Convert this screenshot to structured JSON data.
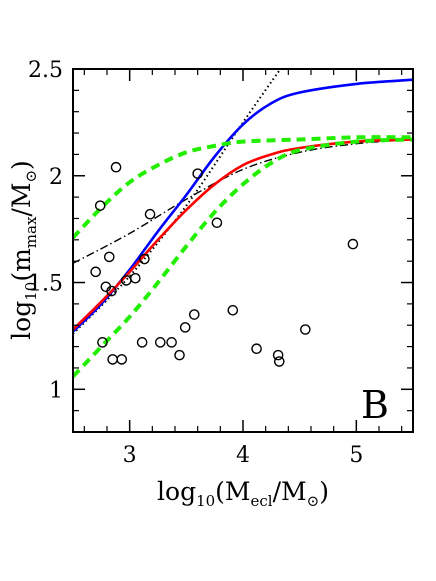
{
  "chart_data": {
    "type": "scatter",
    "panel_label": "B",
    "xlabel": {
      "pre": "log",
      "pre_sub": "10",
      "mid": "(M",
      "sub": "ecl",
      "post": "/M",
      "sun": "⊙",
      "end": ")"
    },
    "ylabel": {
      "pre": "log",
      "pre_sub": "10",
      "mid": "(m",
      "sub": "max",
      "post": "/M",
      "sun": "⊙",
      "end": ")"
    },
    "xlim": [
      2.5,
      5.5
    ],
    "ylim": [
      0.8,
      2.5
    ],
    "x_ticks": [
      3,
      4,
      5
    ],
    "x_tick_labels": [
      "3",
      "4",
      "5"
    ],
    "y_ticks": [
      1,
      1.5,
      2,
      2.5
    ],
    "y_tick_labels": [
      "1",
      "1.5",
      "2",
      "2.5"
    ],
    "grid": false,
    "points": [
      [
        2.7,
        1.55
      ],
      [
        2.74,
        1.86
      ],
      [
        2.76,
        1.22
      ],
      [
        2.79,
        1.48
      ],
      [
        2.82,
        1.62
      ],
      [
        2.84,
        1.46
      ],
      [
        2.85,
        1.14
      ],
      [
        2.88,
        2.04
      ],
      [
        2.93,
        1.14
      ],
      [
        2.97,
        1.51
      ],
      [
        3.05,
        1.52
      ],
      [
        3.11,
        1.22
      ],
      [
        3.13,
        1.61
      ],
      [
        3.18,
        1.82
      ],
      [
        3.27,
        1.22
      ],
      [
        3.37,
        1.22
      ],
      [
        3.44,
        1.16
      ],
      [
        3.49,
        1.29
      ],
      [
        3.57,
        1.35
      ],
      [
        3.6,
        2.01
      ],
      [
        3.77,
        1.78
      ],
      [
        3.91,
        1.37
      ],
      [
        4.12,
        1.19
      ],
      [
        4.31,
        1.16
      ],
      [
        4.32,
        1.13
      ],
      [
        4.55,
        1.28
      ],
      [
        4.97,
        1.68
      ]
    ],
    "series": [
      {
        "style": "dotted",
        "color": "#000000",
        "points": [
          [
            2.5,
            1.26
          ],
          [
            3.0,
            1.53
          ],
          [
            3.5,
            1.86
          ],
          [
            4.0,
            2.25
          ],
          [
            4.37,
            2.53
          ]
        ]
      },
      {
        "style": "dashdot",
        "color": "#000000",
        "points": [
          [
            2.5,
            1.59
          ],
          [
            3.0,
            1.73
          ],
          [
            3.5,
            1.89
          ],
          [
            4.0,
            2.03
          ],
          [
            4.5,
            2.11
          ],
          [
            5.0,
            2.15
          ],
          [
            5.5,
            2.17
          ]
        ]
      },
      {
        "style": "solid",
        "color": "#0000ff",
        "points": [
          [
            2.5,
            1.27
          ],
          [
            2.75,
            1.4
          ],
          [
            3.0,
            1.56
          ],
          [
            3.25,
            1.74
          ],
          [
            3.5,
            1.91
          ],
          [
            3.75,
            2.09
          ],
          [
            4.0,
            2.24
          ],
          [
            4.25,
            2.34
          ],
          [
            4.5,
            2.39
          ],
          [
            5.0,
            2.43
          ],
          [
            5.5,
            2.45
          ]
        ]
      },
      {
        "style": "solid",
        "color": "#ff0000",
        "points": [
          [
            2.5,
            1.28
          ],
          [
            2.75,
            1.41
          ],
          [
            3.0,
            1.55
          ],
          [
            3.25,
            1.7
          ],
          [
            3.5,
            1.84
          ],
          [
            3.75,
            1.96
          ],
          [
            4.0,
            2.05
          ],
          [
            4.25,
            2.1
          ],
          [
            4.5,
            2.13
          ],
          [
            5.0,
            2.16
          ],
          [
            5.5,
            2.17
          ]
        ]
      },
      {
        "style": "dashed",
        "color": "#22ee00",
        "points": [
          [
            2.5,
            1.71
          ],
          [
            2.75,
            1.85
          ],
          [
            3.0,
            1.97
          ],
          [
            3.25,
            2.05
          ],
          [
            3.5,
            2.11
          ],
          [
            3.75,
            2.14
          ],
          [
            4.0,
            2.16
          ],
          [
            4.5,
            2.17
          ],
          [
            5.0,
            2.18
          ],
          [
            5.5,
            2.18
          ]
        ]
      },
      {
        "style": "dashed",
        "color": "#22ee00",
        "points": [
          [
            2.5,
            1.06
          ],
          [
            2.75,
            1.2
          ],
          [
            3.0,
            1.34
          ],
          [
            3.25,
            1.5
          ],
          [
            3.5,
            1.67
          ],
          [
            3.75,
            1.83
          ],
          [
            4.0,
            1.96
          ],
          [
            4.25,
            2.06
          ],
          [
            4.5,
            2.12
          ],
          [
            5.0,
            2.16
          ],
          [
            5.5,
            2.17
          ]
        ]
      }
    ]
  }
}
